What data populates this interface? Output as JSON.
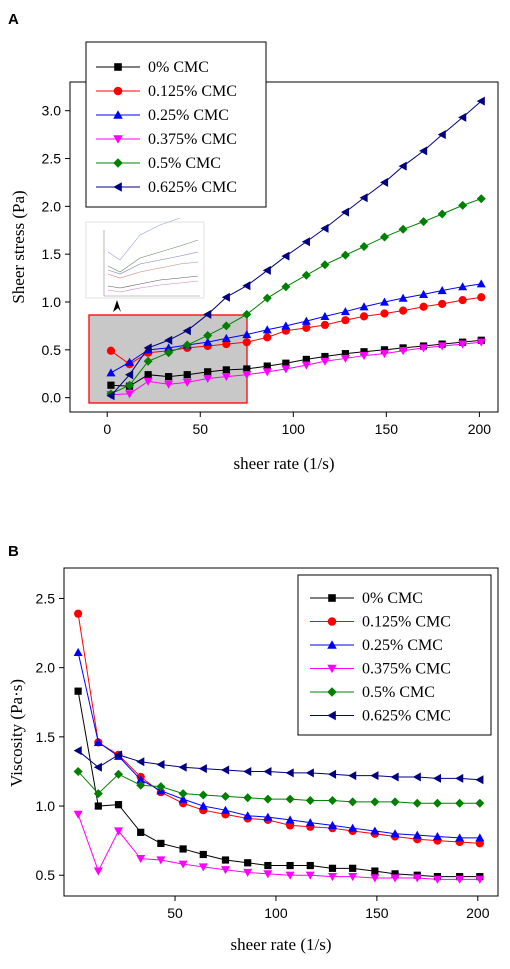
{
  "chart_data": [
    {
      "panel": "A",
      "type": "line",
      "xlabel": "sheer rate (1/s)",
      "ylabel": "Sheer stress (Pa)",
      "xlim": [
        -20,
        210
      ],
      "ylim": [
        -0.15,
        3.3
      ],
      "xticks": [
        0,
        50,
        100,
        150,
        200
      ],
      "yticks": [
        0.0,
        0.5,
        1.0,
        1.5,
        2.0,
        2.5,
        3.0
      ],
      "ytick_labels": [
        "0.0",
        "0.5",
        "1.0",
        "1.5",
        "2.0",
        "2.5",
        "3.0"
      ],
      "legend_position": "top-left",
      "x": [
        2,
        12,
        22,
        33,
        43,
        54,
        64,
        75,
        86,
        96,
        107,
        117,
        128,
        138,
        149,
        159,
        170,
        180,
        191,
        201
      ],
      "series": [
        {
          "name": "0% CMC",
          "color": "#000000",
          "marker": "square",
          "values": [
            0.13,
            0.12,
            0.24,
            0.22,
            0.24,
            0.27,
            0.29,
            0.3,
            0.33,
            0.36,
            0.4,
            0.43,
            0.46,
            0.48,
            0.5,
            0.52,
            0.54,
            0.56,
            0.58,
            0.6
          ]
        },
        {
          "name": "0.125% CMC",
          "color": "#ff0000",
          "marker": "circle",
          "values": [
            0.49,
            0.35,
            0.47,
            0.49,
            0.52,
            0.54,
            0.56,
            0.58,
            0.63,
            0.7,
            0.73,
            0.76,
            0.81,
            0.85,
            0.88,
            0.91,
            0.95,
            0.98,
            1.02,
            1.05
          ]
        },
        {
          "name": "0.25% CMC",
          "color": "#0000ff",
          "marker": "triangle-up",
          "values": [
            0.26,
            0.37,
            0.5,
            0.52,
            0.55,
            0.58,
            0.62,
            0.66,
            0.71,
            0.75,
            0.8,
            0.85,
            0.9,
            0.95,
            1.0,
            1.04,
            1.08,
            1.12,
            1.16,
            1.19
          ]
        },
        {
          "name": "0.375% CMC",
          "color": "#ff00ff",
          "marker": "triangle-down",
          "values": [
            0.03,
            0.04,
            0.17,
            0.14,
            0.16,
            0.2,
            0.22,
            0.24,
            0.27,
            0.3,
            0.34,
            0.38,
            0.41,
            0.44,
            0.46,
            0.49,
            0.52,
            0.54,
            0.56,
            0.58
          ]
        },
        {
          "name": "0.5% CMC",
          "color": "#008000",
          "marker": "diamond",
          "values": [
            0.04,
            0.13,
            0.38,
            0.47,
            0.55,
            0.65,
            0.75,
            0.87,
            1.04,
            1.16,
            1.28,
            1.39,
            1.49,
            1.58,
            1.68,
            1.76,
            1.84,
            1.92,
            2.01,
            2.08
          ]
        },
        {
          "name": "0.625% CMC",
          "color": "#000080",
          "marker": "triangle-left",
          "values": [
            0.02,
            0.24,
            0.52,
            0.6,
            0.7,
            0.87,
            1.05,
            1.17,
            1.33,
            1.48,
            1.63,
            1.77,
            1.94,
            2.09,
            2.25,
            2.42,
            2.58,
            2.75,
            2.93,
            3.1
          ]
        }
      ]
    },
    {
      "panel": "B",
      "type": "line",
      "xlabel": "sheer rate (1/s)",
      "ylabel": "Viscosity (Pa·s)",
      "xlim": [
        -5,
        210
      ],
      "ylim": [
        0.35,
        2.72
      ],
      "xticks": [
        50,
        100,
        150,
        200
      ],
      "yticks": [
        0.5,
        1.0,
        1.5,
        2.0,
        2.5
      ],
      "ytick_labels": [
        "0.5",
        "1.0",
        "1.5",
        "2.0",
        "2.5"
      ],
      "legend_position": "top-right",
      "x": [
        2,
        12,
        22,
        33,
        43,
        54,
        64,
        75,
        86,
        96,
        107,
        117,
        128,
        138,
        149,
        159,
        170,
        180,
        191,
        201
      ],
      "series": [
        {
          "name": "0% CMC",
          "color": "#000000",
          "marker": "square",
          "values": [
            1.83,
            1.0,
            1.01,
            0.81,
            0.73,
            0.69,
            0.65,
            0.61,
            0.59,
            0.57,
            0.57,
            0.57,
            0.55,
            0.55,
            0.53,
            0.51,
            0.5,
            0.49,
            0.49,
            0.49
          ]
        },
        {
          "name": "0.125% CMC",
          "color": "#ff0000",
          "marker": "circle",
          "values": [
            2.39,
            1.46,
            1.37,
            1.21,
            1.1,
            1.02,
            0.97,
            0.94,
            0.91,
            0.9,
            0.86,
            0.85,
            0.84,
            0.82,
            0.8,
            0.78,
            0.76,
            0.75,
            0.74,
            0.73
          ]
        },
        {
          "name": "0.25% CMC",
          "color": "#0000ff",
          "marker": "triangle-up",
          "values": [
            2.11,
            1.46,
            1.36,
            1.19,
            1.11,
            1.05,
            1.0,
            0.97,
            0.93,
            0.92,
            0.9,
            0.88,
            0.86,
            0.84,
            0.82,
            0.8,
            0.79,
            0.78,
            0.77,
            0.77
          ]
        },
        {
          "name": "0.375% CMC",
          "color": "#ff00ff",
          "marker": "triangle-down",
          "values": [
            0.94,
            0.53,
            0.82,
            0.62,
            0.61,
            0.58,
            0.56,
            0.54,
            0.52,
            0.51,
            0.5,
            0.5,
            0.49,
            0.49,
            0.48,
            0.48,
            0.48,
            0.47,
            0.47,
            0.47
          ]
        },
        {
          "name": "0.5% CMC",
          "color": "#008000",
          "marker": "diamond",
          "values": [
            1.25,
            1.09,
            1.23,
            1.15,
            1.14,
            1.09,
            1.08,
            1.07,
            1.06,
            1.05,
            1.05,
            1.04,
            1.04,
            1.03,
            1.03,
            1.03,
            1.02,
            1.02,
            1.02,
            1.02
          ]
        },
        {
          "name": "0.625% CMC",
          "color": "#000080",
          "marker": "triangle-left",
          "values": [
            1.4,
            1.28,
            1.37,
            1.32,
            1.3,
            1.28,
            1.27,
            1.26,
            1.25,
            1.25,
            1.24,
            1.24,
            1.23,
            1.22,
            1.22,
            1.21,
            1.21,
            1.2,
            1.2,
            1.19
          ]
        }
      ]
    }
  ]
}
